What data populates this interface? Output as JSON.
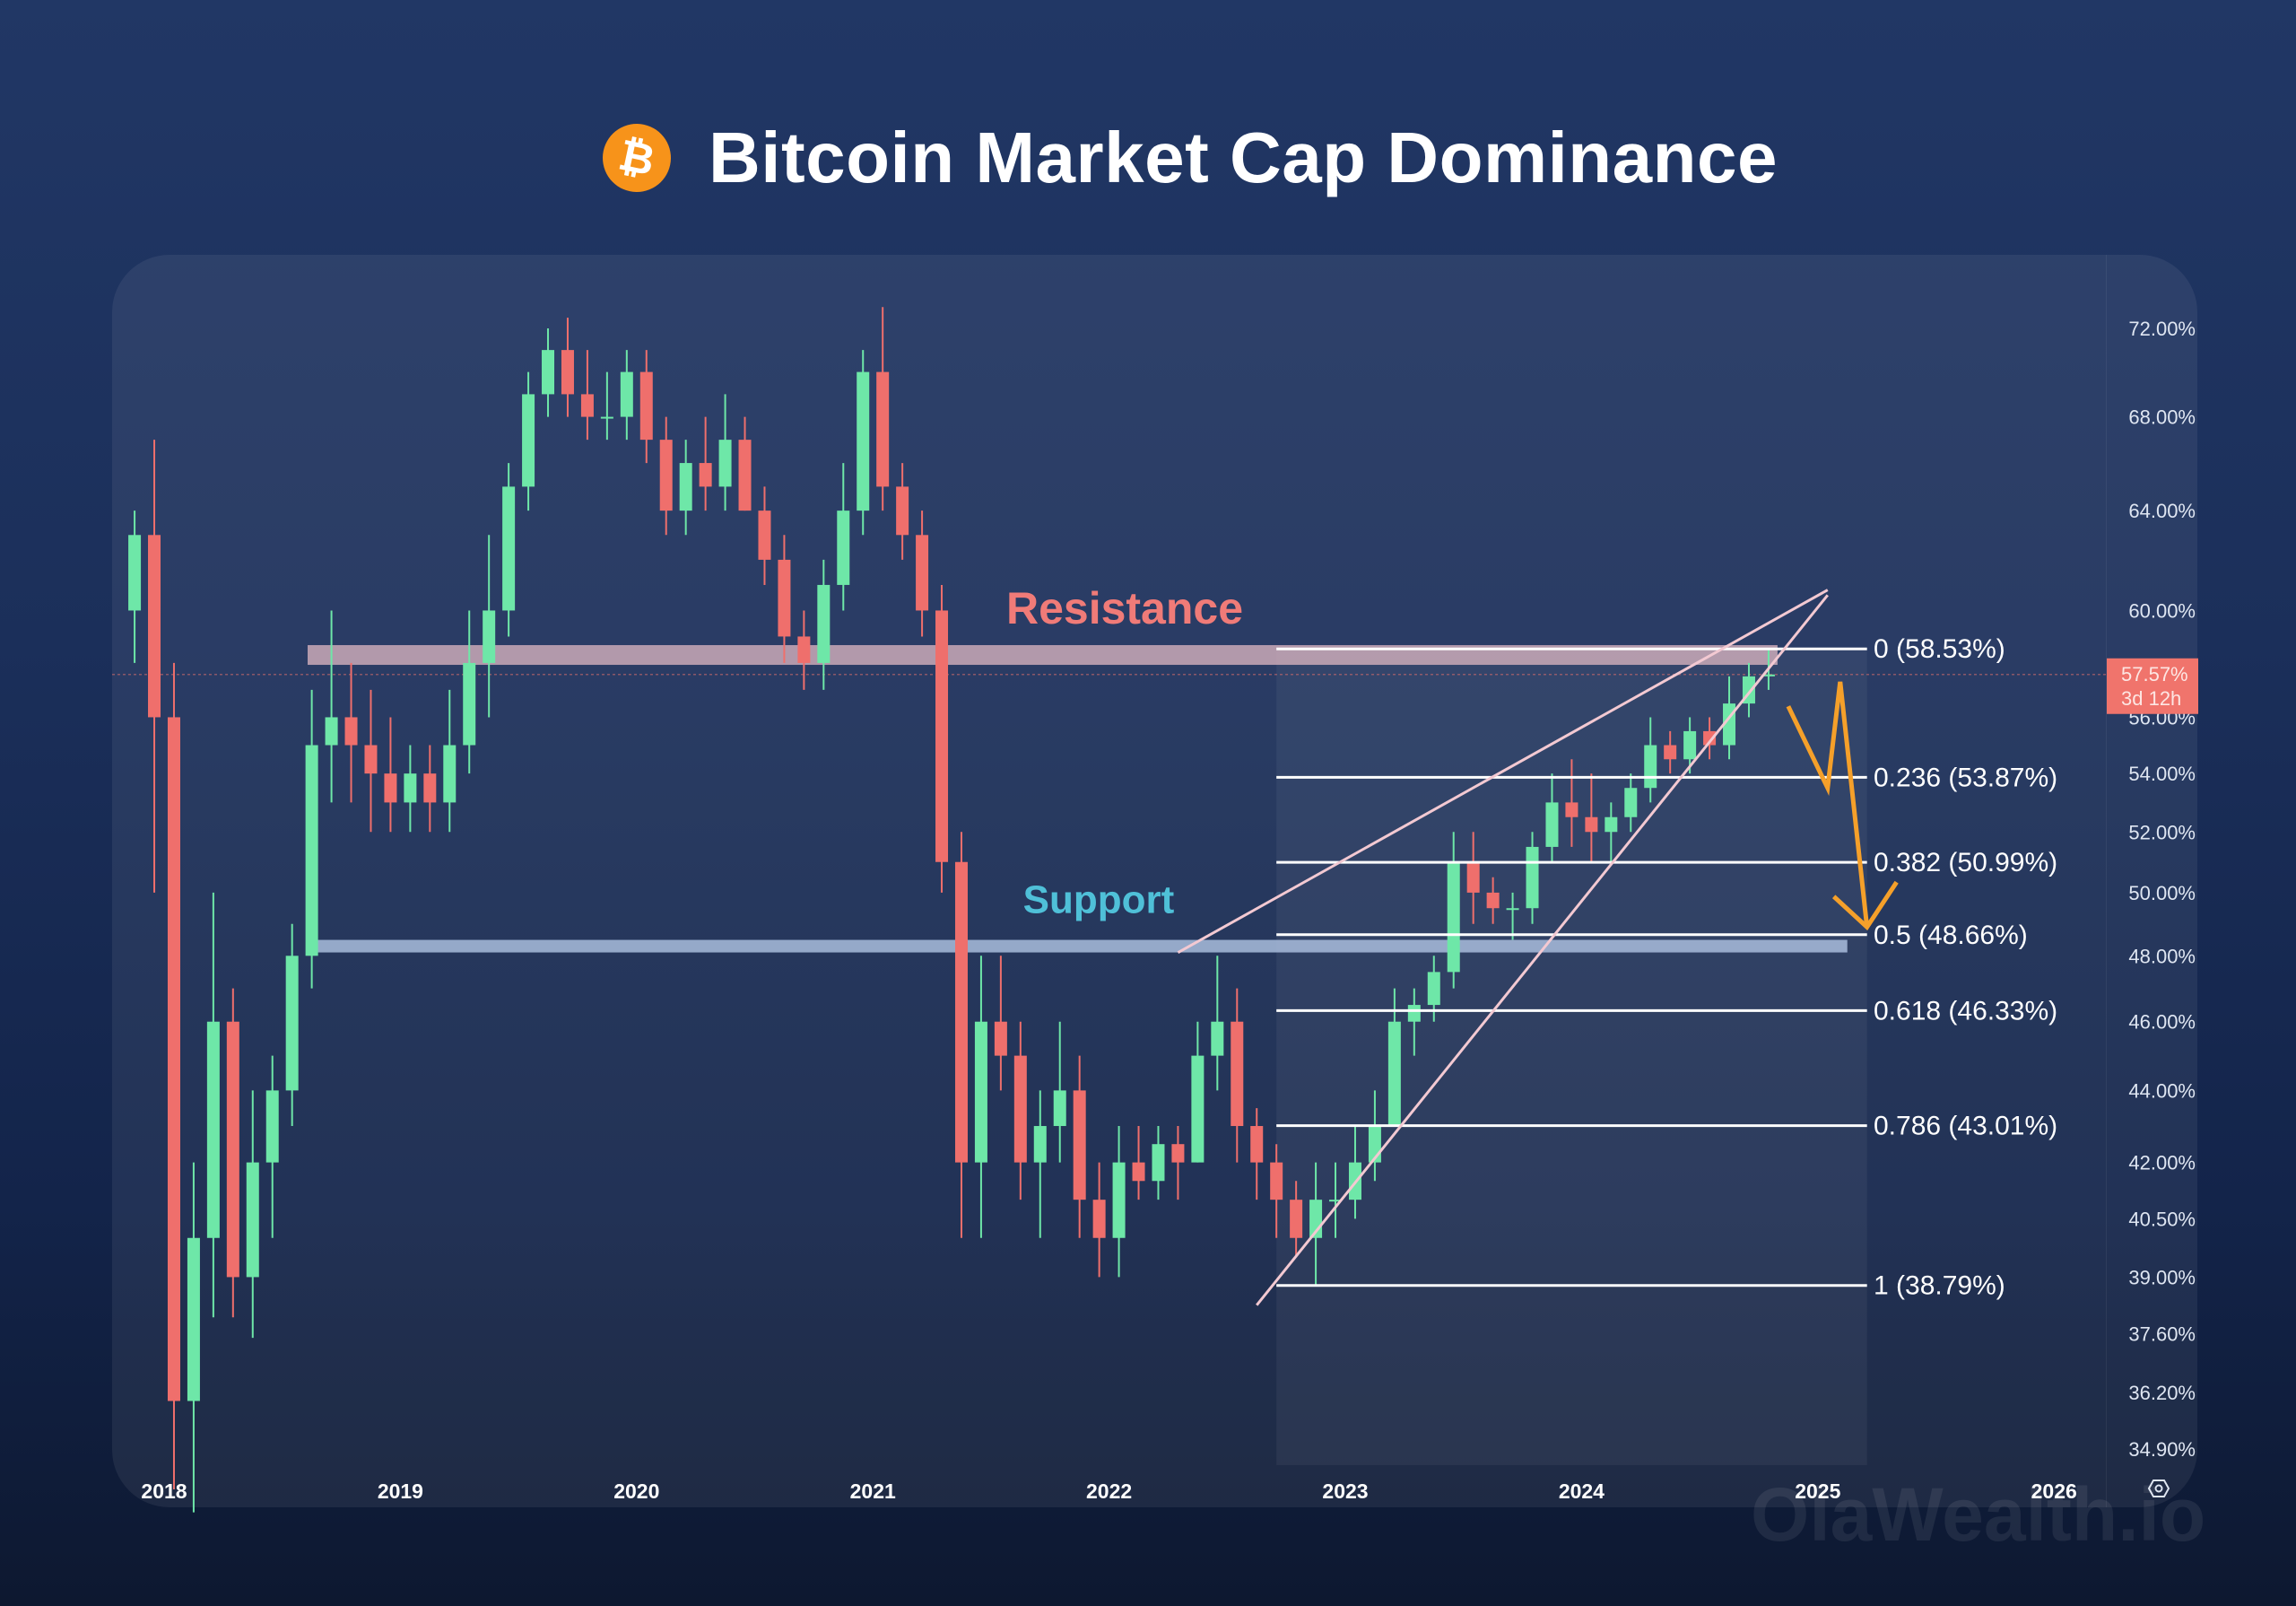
{
  "header": {
    "title": "Bitcoin Market Cap Dominance",
    "logo_symbol": "₿"
  },
  "watermark": "OlaWealth.io",
  "colors": {
    "up": "#6ee7a8",
    "down": "#ef6f6c",
    "resistance": "#f07b78",
    "support": "#4fc0d8",
    "fib": "#ffffff",
    "wedge": "#f3c9d2",
    "projection": "#f5a02a",
    "price_tag": "#f0746c"
  },
  "chart_data": {
    "type": "candlestick",
    "title": "Bitcoin Market Cap Dominance",
    "y_scale": "log",
    "ylim": [
      34.9,
      72.0
    ],
    "y_ticks": [
      "72.00%",
      "68.00%",
      "64.00%",
      "60.00%",
      "56.00%",
      "54.00%",
      "52.00%",
      "50.00%",
      "48.00%",
      "46.00%",
      "44.00%",
      "42.00%",
      "40.50%",
      "39.00%",
      "37.60%",
      "36.20%",
      "34.90%"
    ],
    "y_tick_values": [
      72,
      68,
      64,
      60,
      56,
      54,
      52,
      50,
      48,
      46,
      44,
      42,
      40.5,
      39,
      37.6,
      36.2,
      34.9
    ],
    "x_ticks": [
      "2018",
      "2019",
      "2020",
      "2021",
      "2022",
      "2023",
      "2024",
      "2025",
      "2026"
    ],
    "current": {
      "value": "57.57%",
      "countdown": "3d 12h",
      "numeric": 57.57
    },
    "annotations": {
      "resistance": {
        "label": "Resistance",
        "value": 58.3,
        "from": "2018-08",
        "to": "2024-10"
      },
      "support": {
        "label": "Support",
        "value": 48.3,
        "from": "2018-08",
        "to": "2025-02"
      }
    },
    "fib_levels": [
      {
        "label": "0 (58.53%)",
        "value": 58.53
      },
      {
        "label": "0.236 (53.87%)",
        "value": 53.87
      },
      {
        "label": "0.382 (50.99%)",
        "value": 50.99
      },
      {
        "label": "0.5 (48.66%)",
        "value": 48.66
      },
      {
        "label": "0.618 (46.33%)",
        "value": 46.33
      },
      {
        "label": "0.786 (43.01%)",
        "value": 43.01
      },
      {
        "label": "1 (38.79%)",
        "value": 38.79
      }
    ],
    "fib_range": {
      "from": "2022-09",
      "to": "2025-03"
    },
    "wedge": {
      "upper": [
        [
          "2022-04",
          48.1
        ],
        [
          "2025-01",
          60.8
        ]
      ],
      "lower": [
        [
          "2022-08",
          38.3
        ],
        [
          "2025-01",
          60.6
        ]
      ]
    },
    "projection": [
      [
        "2024-11",
        56.4
      ],
      [
        "2025-01",
        53.5
      ],
      [
        "2025-01",
        57.3
      ],
      [
        "2025-03",
        48.9
      ]
    ],
    "candles": [
      [
        "2017-11",
        60,
        64,
        58,
        63
      ],
      [
        "2017-12",
        63,
        67,
        50,
        56
      ],
      [
        "2018-01",
        56,
        58,
        34,
        36
      ],
      [
        "2018-02",
        36,
        42,
        33.5,
        40
      ],
      [
        "2018-03",
        40,
        50,
        38,
        46
      ],
      [
        "2018-04",
        46,
        47,
        38,
        39
      ],
      [
        "2018-05",
        39,
        44,
        37.5,
        42
      ],
      [
        "2018-06",
        42,
        45,
        40,
        44
      ],
      [
        "2018-07",
        44,
        49,
        43,
        48
      ],
      [
        "2018-08",
        48,
        57,
        47,
        55
      ],
      [
        "2018-09",
        55,
        60,
        53,
        56
      ],
      [
        "2018-10",
        56,
        58,
        53,
        55
      ],
      [
        "2018-11",
        55,
        57,
        52,
        54
      ],
      [
        "2018-12",
        54,
        56,
        52,
        53
      ],
      [
        "2019-01",
        53,
        55,
        52,
        54
      ],
      [
        "2019-02",
        54,
        55,
        52,
        53
      ],
      [
        "2019-03",
        53,
        57,
        52,
        55
      ],
      [
        "2019-04",
        55,
        60,
        54,
        58
      ],
      [
        "2019-05",
        58,
        63,
        56,
        60
      ],
      [
        "2019-06",
        60,
        66,
        59,
        65
      ],
      [
        "2019-07",
        65,
        70,
        64,
        69
      ],
      [
        "2019-08",
        69,
        72,
        68,
        71
      ],
      [
        "2019-09",
        71,
        72.5,
        68,
        69
      ],
      [
        "2019-10",
        69,
        71,
        67,
        68
      ],
      [
        "2019-11",
        68,
        70,
        67,
        68
      ],
      [
        "2019-12",
        68,
        71,
        67,
        70
      ],
      [
        "2020-01",
        70,
        71,
        66,
        67
      ],
      [
        "2020-02",
        67,
        68,
        63,
        64
      ],
      [
        "2020-03",
        64,
        67,
        63,
        66
      ],
      [
        "2020-04",
        66,
        68,
        64,
        65
      ],
      [
        "2020-05",
        65,
        69,
        64,
        67
      ],
      [
        "2020-06",
        67,
        68,
        64,
        64
      ],
      [
        "2020-07",
        64,
        65,
        61,
        62
      ],
      [
        "2020-08",
        62,
        63,
        58,
        59
      ],
      [
        "2020-09",
        59,
        60,
        57,
        58
      ],
      [
        "2020-10",
        58,
        62,
        57,
        61
      ],
      [
        "2020-11",
        61,
        66,
        60,
        64
      ],
      [
        "2020-12",
        64,
        71,
        63,
        70
      ],
      [
        "2021-01",
        70,
        73,
        64,
        65
      ],
      [
        "2021-02",
        65,
        66,
        62,
        63
      ],
      [
        "2021-03",
        63,
        64,
        59,
        60
      ],
      [
        "2021-04",
        60,
        61,
        50,
        51
      ],
      [
        "2021-05",
        51,
        52,
        40,
        42
      ],
      [
        "2021-06",
        42,
        48,
        40,
        46
      ],
      [
        "2021-07",
        46,
        48,
        44,
        45
      ],
      [
        "2021-08",
        45,
        46,
        41,
        42
      ],
      [
        "2021-09",
        42,
        44,
        40,
        43
      ],
      [
        "2021-10",
        43,
        46,
        42,
        44
      ],
      [
        "2021-11",
        44,
        45,
        40,
        41
      ],
      [
        "2021-12",
        41,
        42,
        39,
        40
      ],
      [
        "2022-01",
        40,
        43,
        39,
        42
      ],
      [
        "2022-02",
        42,
        43,
        41,
        41.5
      ],
      [
        "2022-03",
        41.5,
        43,
        41,
        42.5
      ],
      [
        "2022-04",
        42.5,
        43,
        41,
        42
      ],
      [
        "2022-05",
        42,
        46,
        42,
        45
      ],
      [
        "2022-06",
        45,
        48,
        44,
        46
      ],
      [
        "2022-07",
        46,
        47,
        42,
        43
      ],
      [
        "2022-08",
        43,
        43.5,
        41,
        42
      ],
      [
        "2022-09",
        42,
        42.5,
        40,
        41
      ],
      [
        "2022-10",
        41,
        41.5,
        39.5,
        40
      ],
      [
        "2022-11",
        40,
        42,
        38.8,
        41
      ],
      [
        "2022-12",
        41,
        42,
        40,
        41
      ],
      [
        "2023-01",
        41,
        43,
        40.5,
        42
      ],
      [
        "2023-02",
        42,
        44,
        41.5,
        43
      ],
      [
        "2023-03",
        43,
        47,
        43,
        46
      ],
      [
        "2023-04",
        46,
        47,
        45,
        46.5
      ],
      [
        "2023-05",
        46.5,
        48,
        46,
        47.5
      ],
      [
        "2023-06",
        47.5,
        52,
        47,
        51
      ],
      [
        "2023-07",
        51,
        52,
        49,
        50
      ],
      [
        "2023-08",
        50,
        50.5,
        49,
        49.5
      ],
      [
        "2023-09",
        49.5,
        50,
        48.5,
        49.5
      ],
      [
        "2023-10",
        49.5,
        52,
        49,
        51.5
      ],
      [
        "2023-11",
        51.5,
        54,
        51,
        53
      ],
      [
        "2023-12",
        53,
        54.5,
        51.5,
        52.5
      ],
      [
        "2024-01",
        52.5,
        54,
        51,
        52
      ],
      [
        "2024-02",
        52,
        53,
        51,
        52.5
      ],
      [
        "2024-03",
        52.5,
        54,
        52,
        53.5
      ],
      [
        "2024-04",
        53.5,
        56,
        53,
        55
      ],
      [
        "2024-05",
        55,
        55.5,
        54,
        54.5
      ],
      [
        "2024-06",
        54.5,
        56,
        54,
        55.5
      ],
      [
        "2024-07",
        55.5,
        56,
        54.5,
        55
      ],
      [
        "2024-08",
        55,
        57.5,
        54.5,
        56.5
      ],
      [
        "2024-09",
        56.5,
        58,
        56,
        57.5
      ],
      [
        "2024-10",
        57.5,
        58.5,
        57,
        57.57
      ]
    ]
  }
}
